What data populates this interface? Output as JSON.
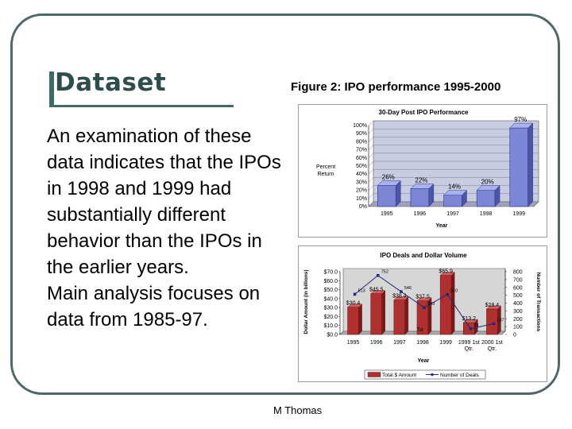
{
  "slide": {
    "title": "Dataset",
    "figure_title": "Figure 2: IPO performance 1995-2000",
    "body_lines": [
      "An examination of these data indicates that the IPOs in 1998 and 1999 had substantially different behavior than the IPOs in the earlier years.",
      "Main analysis focuses on data from 1985-97."
    ],
    "footer": "M Thomas"
  },
  "chart_data": [
    {
      "type": "bar",
      "title": "30-Day Post IPO Performance",
      "xlabel": "Year",
      "ylabel": "Percent Return",
      "categories": [
        "1995",
        "1996",
        "1997",
        "1998",
        "1999"
      ],
      "values": [
        26,
        22,
        14,
        20,
        97
      ],
      "data_labels": [
        "26%",
        "22%",
        "14%",
        "20%",
        "97%"
      ],
      "ylim": [
        0,
        100
      ],
      "yticks": [
        "0%",
        "10%",
        "20%",
        "30%",
        "40%",
        "50%",
        "60%",
        "70%",
        "80%",
        "90%",
        "100%"
      ],
      "grid": true,
      "colors": {
        "bar": "#7b86d6",
        "bar_side": "#4c56a8",
        "bar_top": "#a9b1ee",
        "wall": "#c8cce0",
        "grid": "#7f7f9f"
      }
    },
    {
      "type": "bar+line",
      "title": "IPO Deals and Dollar Volume",
      "xlabel": "Year",
      "ylabel": "Dollar Amount (in billions)",
      "y2label": "Number of Transactions",
      "categories": [
        "1995",
        "1996",
        "1997",
        "1998",
        "1999",
        "1999 1st Qtr.",
        "2000 1st Qtr."
      ],
      "ylim": [
        0,
        70
      ],
      "yticks": [
        "$0.0",
        "$10.0",
        "$20.0",
        "$30.0",
        "$40.0",
        "$50.0",
        "$60.0",
        "$70.0"
      ],
      "y2lim": [
        0,
        800
      ],
      "y2ticks": [
        "0",
        "100",
        "200",
        "300",
        "400",
        "500",
        "600",
        "700",
        "800"
      ],
      "series": [
        {
          "name": "Total $ Amount",
          "axis": "left",
          "values": [
            30.4,
            45.5,
            38.4,
            37.5,
            65.9,
            13.2,
            28.4
          ],
          "labels": [
            "$30.4",
            "$45.5",
            "$38.4",
            "$37.5",
            "$65.9",
            "$13.2",
            "$28.4"
          ]
        },
        {
          "name": "Number of Deals",
          "axis": "right",
          "values": [
            513,
            752,
            546,
            343,
            510,
            73,
            137
          ],
          "labels": [
            "513",
            "752",
            "546",
            "343",
            "510",
            "73",
            "137"
          ]
        }
      ],
      "annotations": [
        "Tot"
      ],
      "legend": "bottom",
      "colors": {
        "bar": "#b03030",
        "bar_side": "#7a1a1a",
        "bar_top": "#d26060",
        "line": "#1f2a7a",
        "wall": "#d6d6d6"
      }
    }
  ]
}
